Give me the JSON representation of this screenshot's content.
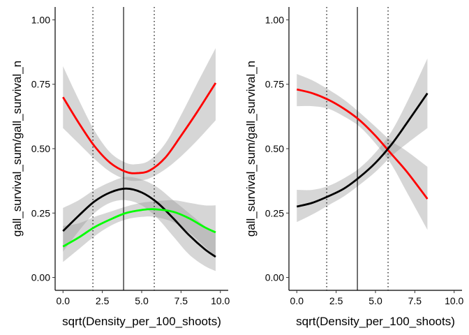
{
  "chart_data": [
    {
      "type": "line",
      "title": "",
      "xlabel": "sqrt(Density_per_100_shoots)",
      "ylabel": "gall_survival_sum/gall_survival_n",
      "xlim": [
        -0.5,
        10.5
      ],
      "ylim": [
        -0.05,
        1.05
      ],
      "x_ticks": [
        0.0,
        2.5,
        5.0,
        7.5,
        10.0
      ],
      "x_tick_labels": [
        "0.0",
        "2.5",
        "5.0",
        "7.5",
        "10.0"
      ],
      "y_ticks": [
        0.0,
        0.25,
        0.5,
        0.75,
        1.0
      ],
      "y_tick_labels": [
        "0.00",
        "0.25",
        "0.50",
        "0.75",
        "1.00"
      ],
      "grid": false,
      "legend": "none",
      "vlines": [
        {
          "x": 1.9,
          "style": "dotted"
        },
        {
          "x": 3.85,
          "style": "solid"
        },
        {
          "x": 5.8,
          "style": "dotted"
        }
      ],
      "series": [
        {
          "color": "#ff0000",
          "x": [
            0,
            1,
            2,
            3,
            4,
            4.7,
            5.5,
            6.5,
            7.5,
            8.5,
            9.7
          ],
          "y": [
            0.7,
            0.6,
            0.51,
            0.445,
            0.41,
            0.405,
            0.415,
            0.465,
            0.55,
            0.64,
            0.755
          ],
          "ci_lower": [
            0.58,
            0.52,
            0.46,
            0.41,
            0.38,
            0.375,
            0.385,
            0.42,
            0.47,
            0.53,
            0.61
          ],
          "ci_upper": [
            0.82,
            0.69,
            0.57,
            0.485,
            0.445,
            0.44,
            0.455,
            0.52,
            0.63,
            0.75,
            0.89
          ]
        },
        {
          "color": "#000000",
          "x": [
            0,
            1,
            2,
            3,
            4,
            5,
            6,
            7,
            8,
            9,
            9.7
          ],
          "y": [
            0.18,
            0.24,
            0.295,
            0.33,
            0.345,
            0.33,
            0.29,
            0.23,
            0.165,
            0.11,
            0.08
          ],
          "ci_lower": [
            0.1,
            0.18,
            0.25,
            0.29,
            0.3,
            0.28,
            0.23,
            0.16,
            0.09,
            0.045,
            0.025
          ],
          "ci_upper": [
            0.27,
            0.3,
            0.34,
            0.37,
            0.39,
            0.38,
            0.35,
            0.3,
            0.25,
            0.2,
            0.17
          ]
        },
        {
          "color": "#00ff00",
          "x": [
            0,
            1,
            2,
            3,
            4,
            5,
            5.8,
            7,
            8,
            9,
            9.7
          ],
          "y": [
            0.12,
            0.155,
            0.195,
            0.225,
            0.25,
            0.262,
            0.265,
            0.255,
            0.23,
            0.195,
            0.175
          ],
          "ci_lower": [
            0.06,
            0.11,
            0.16,
            0.2,
            0.225,
            0.235,
            0.235,
            0.215,
            0.175,
            0.12,
            0.08
          ],
          "ci_upper": [
            0.2,
            0.21,
            0.235,
            0.255,
            0.275,
            0.29,
            0.295,
            0.3,
            0.29,
            0.28,
            0.28
          ]
        }
      ]
    },
    {
      "type": "line",
      "title": "",
      "xlabel": "sqrt(Density_per_100_shoots)",
      "ylabel": "gall_survival_sum/gall_survival_n",
      "xlim": [
        -0.5,
        10.5
      ],
      "ylim": [
        -0.05,
        1.05
      ],
      "x_ticks": [
        0.0,
        2.5,
        5.0,
        7.5,
        10.0
      ],
      "x_tick_labels": [
        "0.0",
        "2.5",
        "5.0",
        "7.5",
        "10.0"
      ],
      "y_ticks": [
        0.0,
        0.25,
        0.5,
        0.75,
        1.0
      ],
      "y_tick_labels": [
        "0.00",
        "0.25",
        "0.50",
        "0.75",
        "1.00"
      ],
      "grid": false,
      "legend": "none",
      "vlines": [
        {
          "x": 1.9,
          "style": "dotted"
        },
        {
          "x": 3.85,
          "style": "solid"
        },
        {
          "x": 5.8,
          "style": "dotted"
        }
      ],
      "series": [
        {
          "color": "#ff0000",
          "x": [
            0,
            1,
            2,
            3,
            4,
            5,
            6,
            7,
            8.3
          ],
          "y": [
            0.73,
            0.715,
            0.69,
            0.655,
            0.61,
            0.55,
            0.48,
            0.41,
            0.305
          ],
          "ci_lower": [
            0.665,
            0.665,
            0.655,
            0.625,
            0.585,
            0.52,
            0.44,
            0.33,
            0.185
          ],
          "ci_upper": [
            0.79,
            0.765,
            0.73,
            0.69,
            0.64,
            0.585,
            0.53,
            0.49,
            0.43
          ]
        },
        {
          "color": "#000000",
          "x": [
            0,
            1,
            2,
            3,
            4,
            5,
            6,
            7,
            8.3
          ],
          "y": [
            0.275,
            0.29,
            0.315,
            0.345,
            0.39,
            0.445,
            0.515,
            0.6,
            0.715
          ],
          "ci_lower": [
            0.215,
            0.245,
            0.28,
            0.315,
            0.36,
            0.41,
            0.47,
            0.52,
            0.58
          ],
          "ci_upper": [
            0.34,
            0.34,
            0.355,
            0.385,
            0.425,
            0.485,
            0.565,
            0.68,
            0.85
          ]
        }
      ]
    }
  ]
}
